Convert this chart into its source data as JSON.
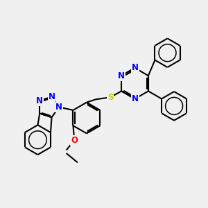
{
  "bg_color": "#f0f0f0",
  "bond_color": "#000000",
  "bond_width": 1.5,
  "atom_colors": {
    "N": "#0000ff",
    "O": "#ff0000",
    "S": "#cccc00",
    "C": "#000000"
  },
  "font_size_atom": 8.5
}
